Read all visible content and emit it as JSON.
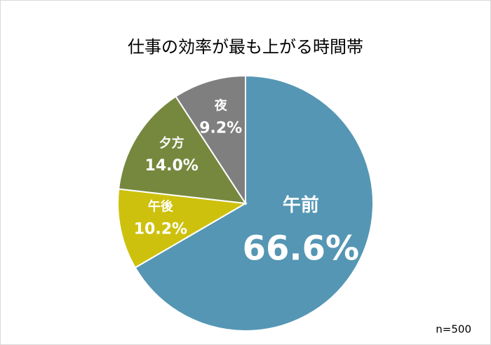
{
  "chart_data": {
    "type": "pie",
    "title": "仕事の効率が最も上がる時間帯",
    "note": "n=500",
    "categories": [
      "午前",
      "午後",
      "夕方",
      "夜"
    ],
    "values": [
      66.6,
      10.2,
      14.0,
      9.2
    ],
    "value_labels": [
      "66.6%",
      "10.2%",
      "14.0%",
      "9.2%"
    ],
    "colors": [
      "#5596b4",
      "#cdc10e",
      "#76883e",
      "#7f7f7f"
    ]
  }
}
